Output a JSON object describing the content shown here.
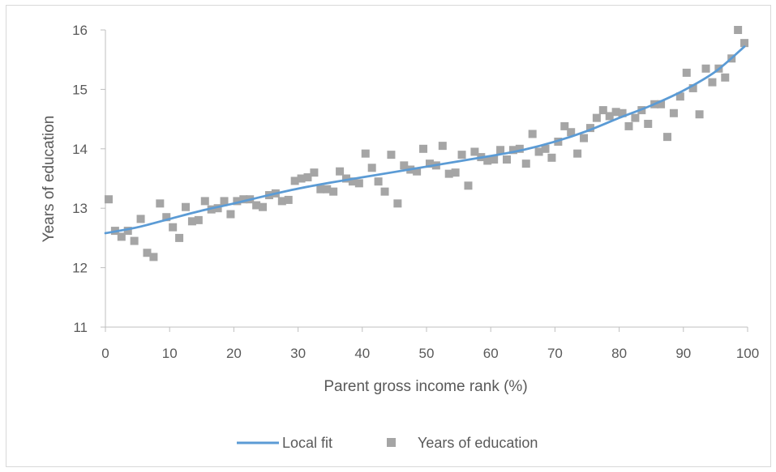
{
  "chart_data": {
    "type": "scatter",
    "title": "",
    "xlabel": "Parent gross income rank (%)",
    "ylabel": "Years of education",
    "xlim": [
      0,
      100
    ],
    "ylim": [
      11,
      16
    ],
    "x_ticks": [
      0,
      10,
      20,
      30,
      40,
      50,
      60,
      70,
      80,
      90,
      100
    ],
    "y_ticks": [
      11,
      12,
      13,
      14,
      15,
      16
    ],
    "grid": false,
    "legend_position": "bottom",
    "series": [
      {
        "name": "Local fit",
        "kind": "line",
        "color": "#5b9bd5",
        "x": [
          0,
          5,
          10,
          15,
          20,
          25,
          30,
          35,
          40,
          45,
          50,
          55,
          60,
          65,
          70,
          75,
          80,
          85,
          90,
          95,
          99.5
        ],
        "y": [
          12.58,
          12.68,
          12.82,
          12.96,
          13.08,
          13.21,
          13.33,
          13.43,
          13.52,
          13.61,
          13.7,
          13.79,
          13.88,
          13.98,
          14.12,
          14.3,
          14.52,
          14.73,
          14.98,
          15.3,
          15.72
        ]
      },
      {
        "name": "Years of education",
        "kind": "scatter",
        "color": "#a5a5a5",
        "x": [
          0.5,
          1.5,
          2.5,
          3.5,
          4.5,
          5.5,
          6.5,
          7.5,
          8.5,
          9.5,
          10.5,
          11.5,
          12.5,
          13.5,
          14.5,
          15.5,
          16.5,
          17.5,
          18.5,
          19.5,
          20.5,
          21.5,
          22.5,
          23.5,
          24.5,
          25.5,
          26.5,
          27.5,
          28.5,
          29.5,
          30.5,
          31.5,
          32.5,
          33.5,
          34.5,
          35.5,
          36.5,
          37.5,
          38.5,
          39.5,
          40.5,
          41.5,
          42.5,
          43.5,
          44.5,
          45.5,
          46.5,
          47.5,
          48.5,
          49.5,
          50.5,
          51.5,
          52.5,
          53.5,
          54.5,
          55.5,
          56.5,
          57.5,
          58.5,
          59.5,
          60.5,
          61.5,
          62.5,
          63.5,
          64.5,
          65.5,
          66.5,
          67.5,
          68.5,
          69.5,
          70.5,
          71.5,
          72.5,
          73.5,
          74.5,
          75.5,
          76.5,
          77.5,
          78.5,
          79.5,
          80.5,
          81.5,
          82.5,
          83.5,
          84.5,
          85.5,
          86.5,
          87.5,
          88.5,
          89.5,
          90.5,
          91.5,
          92.5,
          93.5,
          94.5,
          95.5,
          96.5,
          97.5,
          98.5,
          99.5
        ],
        "y": [
          13.15,
          12.62,
          12.52,
          12.62,
          12.45,
          12.82,
          12.25,
          12.18,
          13.08,
          12.85,
          12.68,
          12.5,
          13.02,
          12.78,
          12.8,
          13.12,
          12.98,
          13.0,
          13.12,
          12.9,
          13.12,
          13.15,
          13.15,
          13.05,
          13.02,
          13.22,
          13.25,
          13.12,
          13.14,
          13.46,
          13.5,
          13.52,
          13.6,
          13.32,
          13.32,
          13.28,
          13.62,
          13.5,
          13.45,
          13.42,
          13.92,
          13.68,
          13.45,
          13.28,
          13.9,
          13.08,
          13.72,
          13.65,
          13.62,
          14.0,
          13.75,
          13.72,
          14.05,
          13.58,
          13.6,
          13.9,
          13.38,
          13.95,
          13.86,
          13.8,
          13.82,
          13.98,
          13.82,
          13.98,
          14.0,
          13.75,
          14.25,
          13.95,
          14.0,
          13.85,
          14.12,
          14.38,
          14.28,
          13.92,
          14.18,
          14.35,
          14.52,
          14.65,
          14.55,
          14.62,
          14.6,
          14.38,
          14.52,
          14.65,
          14.42,
          14.75,
          14.75,
          14.2,
          14.6,
          14.88,
          15.28,
          15.02,
          14.58,
          15.35,
          15.12,
          15.35,
          15.2,
          15.52,
          16.0,
          15.78
        ]
      }
    ]
  }
}
